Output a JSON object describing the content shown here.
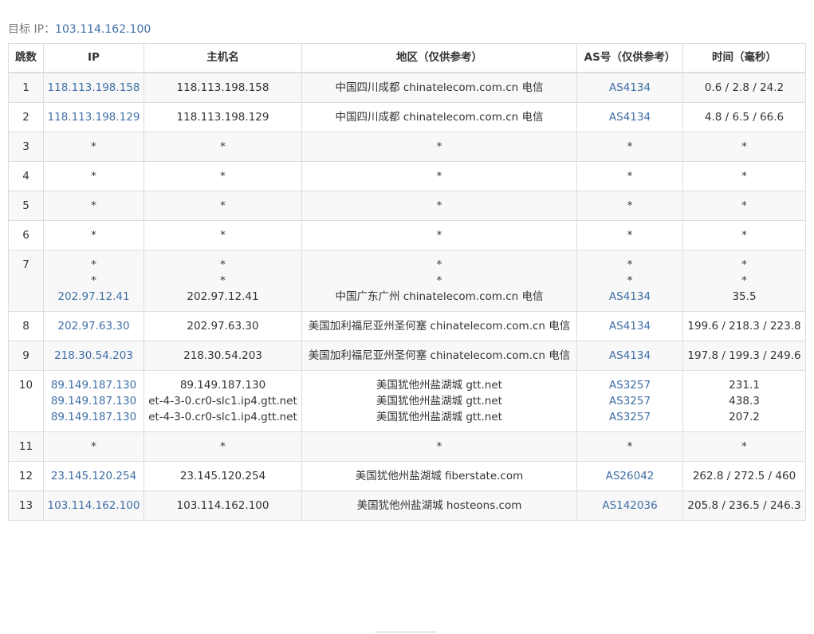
{
  "target": {
    "label": "目标 IP：",
    "ip": "103.114.162.100"
  },
  "columns": [
    "跳数",
    "IP",
    "主机名",
    "地区（仅供参考）",
    "AS号（仅供参考）",
    "时间（毫秒）"
  ],
  "rows": [
    {
      "hop": "1",
      "ip": [
        "118.113.198.158"
      ],
      "host": [
        "118.113.198.158"
      ],
      "region": [
        "中国四川成都 chinatelecom.com.cn 电信"
      ],
      "as": [
        "AS4134"
      ],
      "time": [
        "0.6 / 2.8 / 24.2"
      ]
    },
    {
      "hop": "2",
      "ip": [
        "118.113.198.129"
      ],
      "host": [
        "118.113.198.129"
      ],
      "region": [
        "中国四川成都 chinatelecom.com.cn 电信"
      ],
      "as": [
        "AS4134"
      ],
      "time": [
        "4.8 / 6.5 / 66.6"
      ]
    },
    {
      "hop": "3",
      "ip": [
        "*"
      ],
      "host": [
        "*"
      ],
      "region": [
        "*"
      ],
      "as": [
        "*"
      ],
      "time": [
        "*"
      ]
    },
    {
      "hop": "4",
      "ip": [
        "*"
      ],
      "host": [
        "*"
      ],
      "region": [
        "*"
      ],
      "as": [
        "*"
      ],
      "time": [
        "*"
      ]
    },
    {
      "hop": "5",
      "ip": [
        "*"
      ],
      "host": [
        "*"
      ],
      "region": [
        "*"
      ],
      "as": [
        "*"
      ],
      "time": [
        "*"
      ]
    },
    {
      "hop": "6",
      "ip": [
        "*"
      ],
      "host": [
        "*"
      ],
      "region": [
        "*"
      ],
      "as": [
        "*"
      ],
      "time": [
        "*"
      ]
    },
    {
      "hop": "7",
      "ip": [
        "*",
        "*",
        "202.97.12.41"
      ],
      "host": [
        "*",
        "*",
        "202.97.12.41"
      ],
      "region": [
        "*",
        "*",
        "中国广东广州 chinatelecom.com.cn 电信"
      ],
      "as": [
        "*",
        "*",
        "AS4134"
      ],
      "time": [
        "*",
        "*",
        "35.5"
      ]
    },
    {
      "hop": "8",
      "ip": [
        "202.97.63.30"
      ],
      "host": [
        "202.97.63.30"
      ],
      "region": [
        "美国加利福尼亚州圣何塞 chinatelecom.com.cn 电信"
      ],
      "as": [
        "AS4134"
      ],
      "time": [
        "199.6 / 218.3 / 223.8"
      ]
    },
    {
      "hop": "9",
      "ip": [
        "218.30.54.203"
      ],
      "host": [
        "218.30.54.203"
      ],
      "region": [
        "美国加利福尼亚州圣何塞 chinatelecom.com.cn 电信"
      ],
      "as": [
        "AS4134"
      ],
      "time": [
        "197.8 / 199.3 / 249.6"
      ]
    },
    {
      "hop": "10",
      "ip": [
        "89.149.187.130",
        "89.149.187.130",
        "89.149.187.130"
      ],
      "host": [
        "89.149.187.130",
        "et-4-3-0.cr0-slc1.ip4.gtt.net",
        "et-4-3-0.cr0-slc1.ip4.gtt.net"
      ],
      "region": [
        "美国犹他州盐湖城 gtt.net",
        "美国犹他州盐湖城 gtt.net",
        "美国犹他州盐湖城 gtt.net"
      ],
      "as": [
        "AS3257",
        "AS3257",
        "AS3257"
      ],
      "time": [
        "231.1",
        "438.3",
        "207.2"
      ]
    },
    {
      "hop": "11",
      "ip": [
        "*"
      ],
      "host": [
        "*"
      ],
      "region": [
        "*"
      ],
      "as": [
        "*"
      ],
      "time": [
        "*"
      ]
    },
    {
      "hop": "12",
      "ip": [
        "23.145.120.254"
      ],
      "host": [
        "23.145.120.254"
      ],
      "region": [
        "美国犹他州盐湖城 fiberstate.com"
      ],
      "as": [
        "AS26042"
      ],
      "time": [
        "262.8 / 272.5 / 460"
      ]
    },
    {
      "hop": "13",
      "ip": [
        "103.114.162.100"
      ],
      "host": [
        "103.114.162.100"
      ],
      "region": [
        "美国犹他州盐湖城 hosteons.com"
      ],
      "as": [
        "AS142036"
      ],
      "time": [
        "205.8 / 236.5 / 246.3"
      ]
    }
  ]
}
